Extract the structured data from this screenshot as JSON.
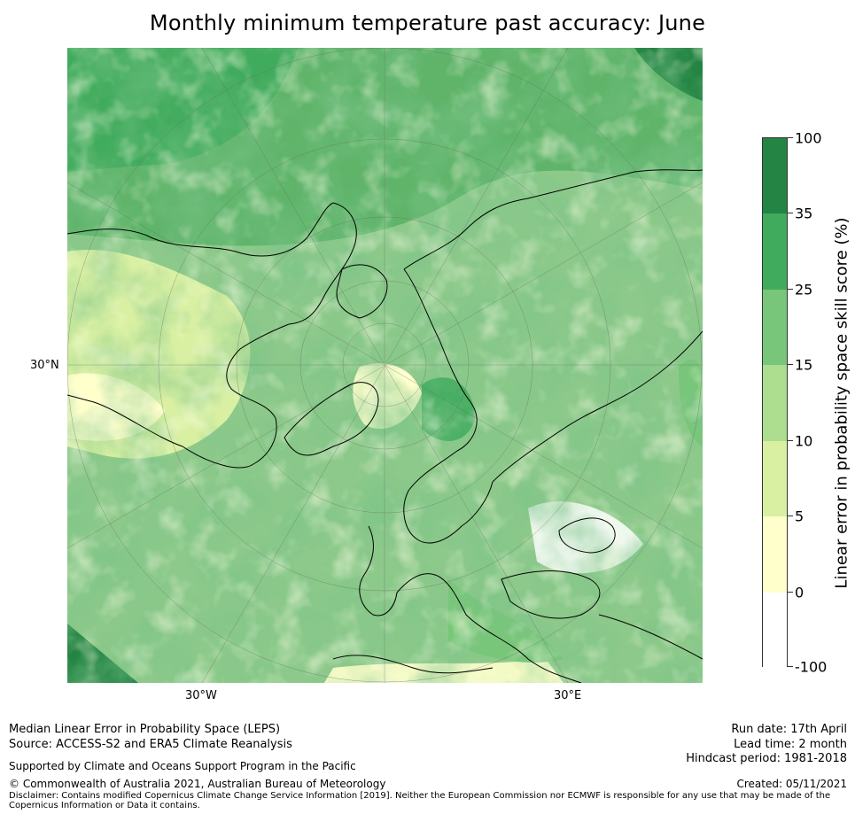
{
  "title": "Monthly minimum temperature past accuracy: June",
  "map": {
    "projection": "north-polar-stereographic",
    "lat_label": "30°N",
    "lon_labels": {
      "west": "30°W",
      "east": "30°E"
    },
    "colors": {
      "band_0": "#ffffff",
      "band_5": "#ffffcc",
      "band_10": "#d9f0a3",
      "band_15": "#addd8e",
      "band_25": "#78c679",
      "band_35": "#41ab5d",
      "band_100": "#238443"
    }
  },
  "colorbar": {
    "title": "Linear error in probability space skill score (%)",
    "tick_labels": [
      "100",
      "35",
      "25",
      "15",
      "10",
      "5",
      "0",
      "-100"
    ],
    "bands": [
      {
        "range": "35 to 100",
        "color": "#238443"
      },
      {
        "range": "25 to 35",
        "color": "#41ab5d"
      },
      {
        "range": "15 to 25",
        "color": "#78c679"
      },
      {
        "range": "10 to 15",
        "color": "#addd8e"
      },
      {
        "range": "5 to 10",
        "color": "#d9f0a3"
      },
      {
        "range": "0 to 5",
        "color": "#ffffcc"
      },
      {
        "range": "-100 to 0",
        "color": "#ffffff"
      }
    ]
  },
  "footer": {
    "left_line1": "Median Linear Error in Probability Space (LEPS)",
    "left_line2": "Source: ACCESS-S2 and ERA5 Climate Reanalysis",
    "support": "Supported by Climate and Oceans Support Program in the Pacific",
    "copyright": "© Commonwealth of Australia 2021, Australian Bureau of Meteorology",
    "disclaimer": "Disclaimer: Contains modified Copernicus Climate Change Service Information [2019]. Neither the European Commission nor ECMWF is responsible for any use that may be made of the Copernicus Information or Data it contains.",
    "run_date": "Run date: 17th April",
    "lead_time": "Lead time: 2 month",
    "hindcast": "Hindcast period: 1981-2018",
    "created": "Created: 05/11/2021"
  }
}
